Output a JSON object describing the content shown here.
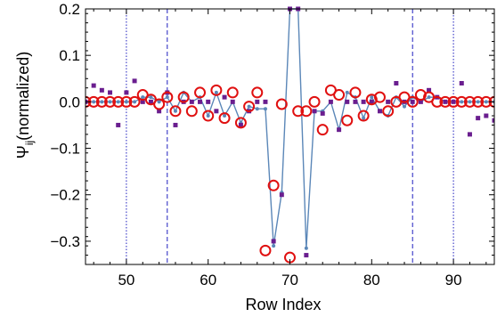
{
  "chart_data": {
    "type": "scatter",
    "xlabel": "Row Index",
    "ylabel_main": "Ψ",
    "ylabel_sub": "ij",
    "ylabel_rest": "(normalized)",
    "xlim": [
      45,
      95
    ],
    "ylim": [
      -0.35,
      0.2
    ],
    "x_ticks": [
      50,
      60,
      70,
      80,
      90
    ],
    "y_ticks": [
      0.2,
      0.1,
      0.0,
      -0.1,
      -0.2,
      -0.3
    ],
    "y_tick_labels": [
      "0.2",
      "0.1",
      "0.0",
      "−0.1",
      "−0.2",
      "−0.3"
    ],
    "vlines": [
      {
        "x": 50,
        "style": "dotted"
      },
      {
        "x": 55,
        "style": "dashed"
      },
      {
        "x": 85,
        "style": "dashed"
      },
      {
        "x": 90,
        "style": "dotted"
      }
    ],
    "colors": {
      "line_series": "#5b87b8",
      "square_series": "#6a1e8f",
      "circle_series": "#e01010",
      "vlines": "#1f1fbf"
    },
    "series": [
      {
        "marker": "line-with-dots",
        "x": [
          45,
          46,
          47,
          48,
          49,
          50,
          51,
          52,
          53,
          54,
          55,
          56,
          57,
          58,
          59,
          60,
          61,
          62,
          63,
          64,
          65,
          66,
          67,
          68,
          69,
          70,
          71,
          72,
          73,
          74,
          75,
          76,
          77,
          78,
          79,
          80,
          81,
          82,
          83,
          84,
          85,
          86,
          87,
          88,
          89,
          90,
          91,
          92,
          93,
          94,
          95
        ],
        "y": [
          0.0,
          0.0,
          0.0,
          0.0,
          0.0,
          0.0,
          0.0,
          0.01,
          0.01,
          0.0,
          0.01,
          -0.02,
          0.02,
          0.0,
          0.01,
          -0.03,
          0.02,
          -0.03,
          0.0,
          -0.045,
          -0.01,
          -0.015,
          -0.015,
          -0.31,
          -0.195,
          0.2,
          0.2,
          -0.315,
          -0.02,
          -0.02,
          0.0,
          -0.06,
          0.02,
          0.01,
          -0.035,
          0.01,
          -0.02,
          -0.03,
          0.01,
          -0.01,
          0.01,
          0.0,
          0.01,
          0.01,
          0.0,
          0.0,
          0.0,
          0.0,
          0.0,
          0.0,
          0.0
        ]
      },
      {
        "marker": "square",
        "x": [
          45,
          46,
          47,
          48,
          49,
          50,
          51,
          52,
          53,
          54,
          55,
          56,
          57,
          58,
          59,
          60,
          61,
          62,
          63,
          64,
          65,
          66,
          67,
          68,
          69,
          70,
          71,
          72,
          73,
          74,
          75,
          76,
          77,
          78,
          79,
          80,
          81,
          82,
          83,
          84,
          85,
          86,
          87,
          88,
          89,
          90,
          91,
          92,
          93,
          94,
          95
        ],
        "y": [
          0.0,
          0.035,
          0.025,
          0.02,
          -0.05,
          0.02,
          0.045,
          0.0,
          0.0,
          -0.02,
          0.02,
          -0.05,
          0.0,
          0.0,
          0.0,
          0.0,
          -0.02,
          0.01,
          0.0,
          -0.05,
          -0.02,
          0.0,
          0.0,
          -0.3,
          -0.2,
          0.2,
          0.2,
          -0.33,
          -0.02,
          -0.025,
          0.0,
          -0.06,
          0.0,
          0.0,
          0.0,
          0.0,
          -0.02,
          0.0,
          0.04,
          0.0,
          0.0,
          0.0,
          0.025,
          0.01,
          0.0,
          0.0,
          0.04,
          -0.07,
          -0.035,
          -0.03,
          -0.04
        ]
      },
      {
        "marker": "open-circle",
        "x": [
          45,
          46,
          47,
          48,
          49,
          50,
          51,
          52,
          53,
          54,
          55,
          56,
          57,
          58,
          59,
          60,
          61,
          62,
          63,
          64,
          65,
          66,
          67,
          68,
          69,
          70,
          71,
          72,
          73,
          74,
          75,
          76,
          77,
          78,
          79,
          80,
          81,
          82,
          83,
          84,
          85,
          86,
          87,
          88,
          89,
          90,
          91,
          92,
          93,
          94,
          95
        ],
        "y": [
          0.0,
          0.0,
          0.0,
          0.0,
          0.0,
          0.0,
          0.0,
          0.015,
          0.005,
          -0.005,
          0.01,
          -0.02,
          0.01,
          -0.02,
          0.02,
          -0.03,
          0.025,
          -0.035,
          0.02,
          -0.045,
          -0.01,
          0.02,
          -0.32,
          -0.18,
          -0.005,
          -0.335,
          -0.02,
          -0.02,
          0.0,
          -0.06,
          0.025,
          0.015,
          -0.04,
          0.02,
          -0.03,
          0.005,
          0.01,
          -0.02,
          0.0,
          0.01,
          0.0,
          0.015,
          0.01,
          0.0,
          0.0,
          0.0,
          0.0,
          0.0,
          0.0,
          0.0,
          0.0
        ]
      }
    ]
  }
}
